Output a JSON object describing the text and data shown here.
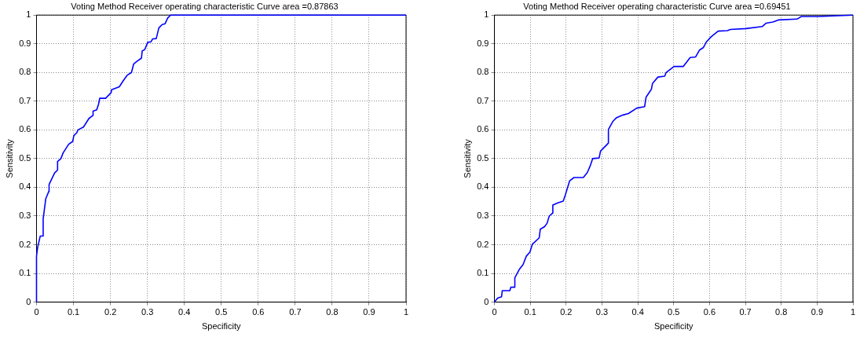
{
  "chart_data": [
    {
      "type": "line",
      "title": "Voting Method Receiver operating characteristic Curve area =0.87863",
      "xlabel": "Specificity",
      "ylabel": "Sensitivity",
      "xlim": [
        0,
        1
      ],
      "ylim": [
        0,
        1
      ],
      "xticks": [
        0,
        0.1,
        0.2,
        0.3,
        0.4,
        0.5,
        0.6,
        0.7,
        0.8,
        0.9,
        1
      ],
      "yticks": [
        0,
        0.1,
        0.2,
        0.3,
        0.4,
        0.5,
        0.6,
        0.7,
        0.8,
        0.9,
        1
      ],
      "grid": true,
      "legend": false,
      "marker": "none",
      "line_style": "solid",
      "series": [
        {
          "color": "#0000ff",
          "x": [
            0,
            0,
            0.003,
            0.01,
            0.016,
            0.018,
            0.025,
            0.033,
            0.034,
            0.049,
            0.057,
            0.057,
            0.066,
            0.072,
            0.087,
            0.098,
            0.101,
            0.109,
            0.112,
            0.127,
            0.142,
            0.152,
            0.153,
            0.163,
            0.168,
            0.171,
            0.187,
            0.202,
            0.203,
            0.224,
            0.234,
            0.245,
            0.257,
            0.263,
            0.273,
            0.284,
            0.286,
            0.293,
            0.301,
            0.31,
            0.314,
            0.324,
            0.331,
            0.34,
            0.348,
            0.355,
            0.363,
            1
          ],
          "values": [
            0,
            0.16,
            0.19,
            0.23,
            0.23,
            0.29,
            0.36,
            0.385,
            0.41,
            0.45,
            0.46,
            0.49,
            0.5,
            0.52,
            0.55,
            0.56,
            0.58,
            0.59,
            0.6,
            0.61,
            0.64,
            0.65,
            0.665,
            0.67,
            0.69,
            0.71,
            0.71,
            0.73,
            0.74,
            0.75,
            0.77,
            0.79,
            0.8,
            0.83,
            0.84,
            0.85,
            0.875,
            0.88,
            0.905,
            0.907,
            0.917,
            0.918,
            0.955,
            0.967,
            0.97,
            0.99,
            1,
            1
          ]
        }
      ]
    },
    {
      "type": "line",
      "title": "Voting Method Receiver operating characteristic Curve area =0.69451",
      "xlabel": "Specificity",
      "ylabel": "Sensitivity",
      "xlim": [
        0,
        1
      ],
      "ylim": [
        0,
        1
      ],
      "xticks": [
        0,
        0.1,
        0.2,
        0.3,
        0.4,
        0.5,
        0.6,
        0.7,
        0.8,
        0.9,
        1
      ],
      "yticks": [
        0,
        0.1,
        0.2,
        0.3,
        0.4,
        0.5,
        0.6,
        0.7,
        0.8,
        0.9,
        1
      ],
      "grid": true,
      "legend": false,
      "marker": "none",
      "line_style": "solid",
      "series": [
        {
          "color": "#0000ff",
          "x": [
            0,
            0.009,
            0.02,
            0.022,
            0.043,
            0.046,
            0.057,
            0.057,
            0.069,
            0.08,
            0.089,
            0.099,
            0.106,
            0.125,
            0.128,
            0.14,
            0.147,
            0.153,
            0.162,
            0.163,
            0.177,
            0.192,
            0.198,
            0.21,
            0.222,
            0.248,
            0.259,
            0.267,
            0.274,
            0.292,
            0.296,
            0.318,
            0.318,
            0.33,
            0.341,
            0.359,
            0.374,
            0.397,
            0.419,
            0.423,
            0.438,
            0.441,
            0.456,
            0.475,
            0.479,
            0.501,
            0.527,
            0.546,
            0.561,
            0.572,
            0.583,
            0.591,
            0.605,
            0.624,
            0.65,
            0.658,
            0.702,
            0.747,
            0.758,
            0.777,
            0.792,
            0.844,
            0.856,
            0.904,
            1
          ],
          "values": [
            0,
            0.014,
            0.019,
            0.04,
            0.04,
            0.052,
            0.052,
            0.085,
            0.113,
            0.131,
            0.16,
            0.174,
            0.202,
            0.224,
            0.254,
            0.263,
            0.275,
            0.3,
            0.31,
            0.338,
            0.346,
            0.352,
            0.374,
            0.423,
            0.434,
            0.434,
            0.451,
            0.474,
            0.5,
            0.502,
            0.526,
            0.554,
            0.601,
            0.629,
            0.643,
            0.652,
            0.657,
            0.676,
            0.681,
            0.714,
            0.742,
            0.762,
            0.784,
            0.787,
            0.8,
            0.821,
            0.821,
            0.852,
            0.854,
            0.878,
            0.887,
            0.906,
            0.925,
            0.944,
            0.946,
            0.95,
            0.953,
            0.96,
            0.972,
            0.976,
            0.983,
            0.986,
            0.995,
            0.995,
            1
          ]
        }
      ]
    }
  ]
}
